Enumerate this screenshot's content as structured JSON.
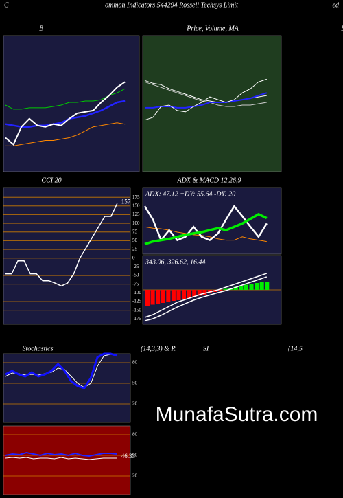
{
  "header": {
    "left": "C",
    "center": "ommon  Indicators 544294  Rossell Techsys Limit",
    "right": "ed"
  },
  "side_label": "B",
  "watermark": "MunafaSutra.com",
  "chart_data": [
    {
      "type": "line",
      "title": "B",
      "ylim": [
        0,
        100
      ],
      "series": [
        {
          "color": "#00cc00",
          "values": [
            49,
            46,
            46,
            47,
            47,
            47,
            48,
            49,
            51,
            51,
            52,
            52,
            53,
            56,
            58,
            61
          ]
        },
        {
          "color": "#2222ff",
          "values": [
            35,
            34,
            33,
            33,
            34,
            34,
            35,
            36,
            39,
            40,
            41,
            43,
            45,
            48,
            51,
            52
          ]
        },
        {
          "color": "#ff8800",
          "values": [
            19,
            19,
            20,
            21,
            22,
            23,
            23,
            24,
            25,
            27,
            30,
            33,
            34,
            35,
            36,
            35
          ]
        },
        {
          "color": "#ffffff",
          "values": [
            25,
            20,
            33,
            39,
            34,
            33,
            35,
            34,
            39,
            43,
            44,
            45,
            51,
            56,
            62,
            66
          ]
        }
      ]
    },
    {
      "type": "line",
      "title": "Price, Volume, MA",
      "ylim": [
        0,
        100
      ],
      "series": [
        {
          "color": "#cccccc",
          "values": [
            66,
            64,
            62,
            60,
            58,
            56,
            54,
            52,
            51,
            49,
            48,
            48,
            49,
            49,
            50,
            51
          ]
        },
        {
          "color": "#ffffff",
          "values": [
            67,
            65,
            64,
            61,
            59,
            57,
            55,
            53,
            52,
            51,
            51,
            52,
            53,
            54,
            55,
            56
          ]
        },
        {
          "color": "#2222ff",
          "values": [
            47,
            47,
            48,
            48,
            47,
            47,
            48,
            49,
            51,
            51,
            51,
            52,
            53,
            54,
            56,
            58
          ]
        },
        {
          "color": "#ffffff",
          "values": [
            38,
            40,
            48,
            49,
            45,
            44,
            48,
            51,
            55,
            53,
            51,
            53,
            58,
            61,
            66,
            68
          ]
        }
      ]
    },
    {
      "type": "line",
      "title": "CCI 20",
      "ylim": [
        -190,
        203
      ],
      "yticks": [
        175,
        150,
        125,
        100,
        75,
        50,
        25,
        0,
        -25,
        -50,
        -75,
        -100,
        -125,
        -150,
        -175
      ],
      "value_label": "157",
      "series": [
        {
          "color": "#ffffff",
          "values": [
            -45,
            -45,
            -8,
            -8,
            -45,
            -45,
            -65,
            -65,
            -72,
            -80,
            -72,
            -45,
            0,
            30,
            60,
            90,
            120,
            120,
            157
          ]
        }
      ]
    },
    {
      "type": "line",
      "title": "ADX  & MACD 12,26,9",
      "annotation": "ADX: 47.12  +DY: 55.64  -DY: 20",
      "ylim": [
        0,
        100
      ],
      "series": [
        {
          "color": "#ff8800",
          "values": [
            41,
            39,
            38,
            36,
            33,
            31,
            29,
            28,
            26,
            23,
            21,
            21,
            26,
            23,
            21,
            19
          ]
        },
        {
          "color": "#ffffff",
          "values": [
            72,
            52,
            21,
            36,
            21,
            26,
            41,
            26,
            21,
            31,
            52,
            72,
            57,
            41,
            26,
            46
          ]
        },
        {
          "color": "#00ee00",
          "values": [
            15,
            19,
            21,
            23,
            26,
            29,
            31,
            33,
            36,
            39,
            36,
            41,
            46,
            53,
            60,
            54
          ]
        }
      ]
    },
    {
      "type": "macd",
      "annotation": "343.06,  326.62,  16.44",
      "ylim": [
        -100,
        100
      ],
      "color_up": "#00ee00",
      "color_down": "#ff0000",
      "bars": [
        -46,
        -43,
        -40,
        -38,
        -35,
        -32,
        -30,
        -27,
        -24,
        -20,
        -17,
        -14,
        -10,
        -6,
        -3,
        3,
        6,
        9,
        12,
        15,
        18,
        20,
        22,
        24
      ],
      "series": [
        {
          "color": "#ffffff",
          "values": [
            -90,
            -84,
            -74,
            -62,
            -50,
            -40,
            -30,
            -22,
            -15,
            -8,
            -2,
            6,
            14,
            22,
            30,
            38
          ]
        },
        {
          "color": "#ffffff",
          "values": [
            -80,
            -72,
            -60,
            -48,
            -36,
            -28,
            -20,
            -12,
            -6,
            0,
            8,
            16,
            24,
            32,
            40,
            48
          ]
        }
      ]
    },
    {
      "type": "line",
      "title": "Stochastics",
      "subtitle": "(14,3,3) & R",
      "ylim": [
        -7,
        93
      ],
      "yticks": [
        80,
        50,
        20
      ],
      "series": [
        {
          "color": "#ffffff",
          "values": [
            60,
            65,
            64,
            62,
            63,
            62,
            64,
            66,
            72,
            70,
            60,
            50,
            44,
            50,
            75,
            90,
            92,
            91
          ]
        },
        {
          "color": "#1111ff",
          "values": [
            63,
            68,
            63,
            60,
            66,
            60,
            63,
            68,
            78,
            68,
            53,
            46,
            43,
            58,
            88,
            93,
            93,
            90
          ]
        }
      ]
    },
    {
      "type": "line",
      "title": "SI",
      "subtitle": "(14,5",
      "ylim": [
        -7,
        93
      ],
      "yticks": [
        80,
        50,
        20
      ],
      "value_label": "46.33",
      "series": [
        {
          "color": "#2222ff",
          "values": [
            50,
            52,
            51,
            54,
            52,
            50,
            53,
            51,
            52,
            50,
            53,
            50,
            49,
            51,
            53,
            53,
            52
          ]
        },
        {
          "color": "#ffffff",
          "values": [
            46,
            47,
            46,
            47,
            45,
            46,
            46,
            45,
            47,
            45,
            46,
            45,
            44,
            45,
            46,
            46,
            46
          ]
        }
      ]
    }
  ]
}
